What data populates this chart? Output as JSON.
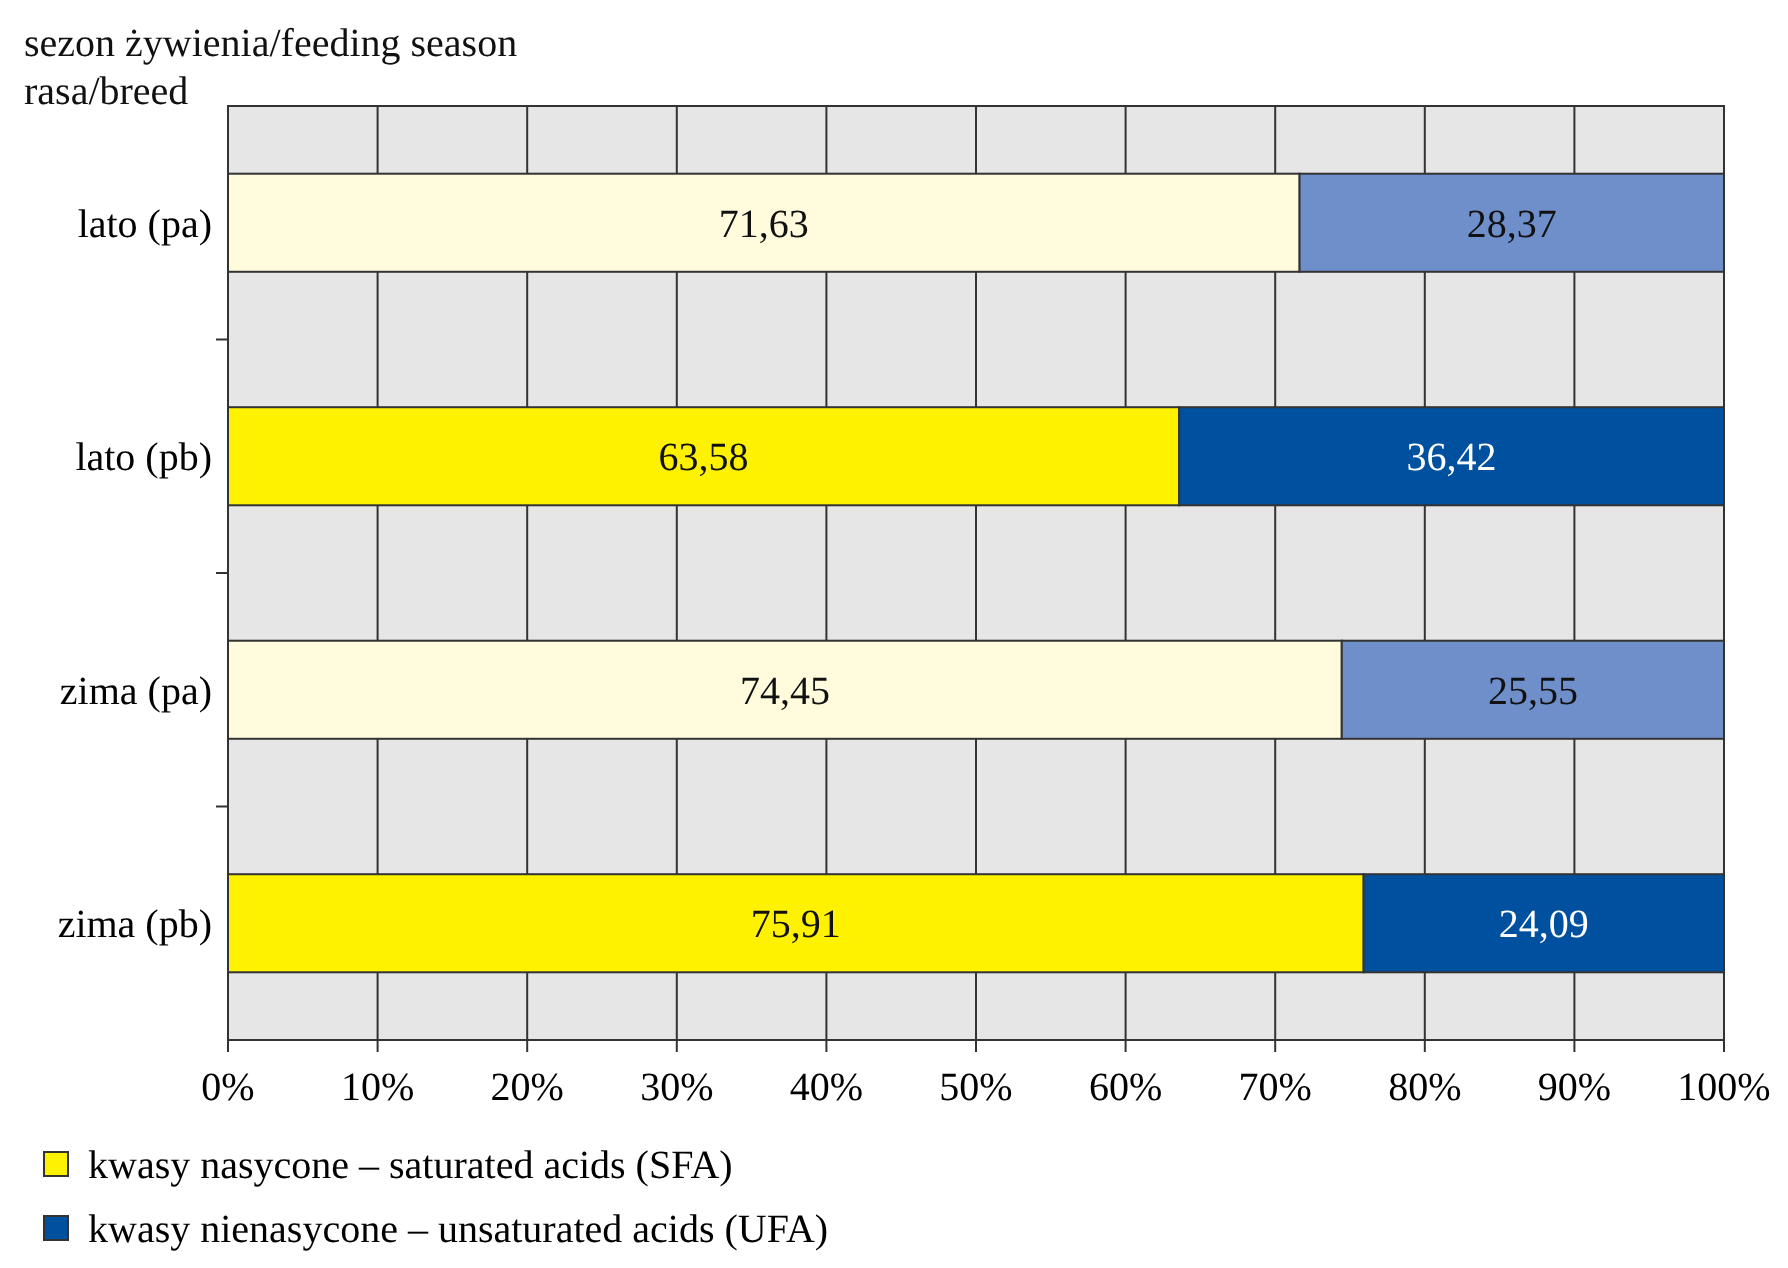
{
  "chart_data": {
    "type": "bar",
    "orientation": "horizontal",
    "stacked": true,
    "title": "sezon żywienia/feeding season",
    "subtitle": "rasa/breed",
    "categories": [
      "lato (pa)",
      "lato (pb)",
      "zima (pa)",
      "zima (pb)"
    ],
    "series": [
      {
        "name": "kwasy nasycone – saturated acids (SFA)",
        "color": "#fff200",
        "colors": [
          "#fffbdc",
          "#fff200",
          "#fffbdc",
          "#fff200"
        ],
        "values": [
          71.63,
          63.58,
          74.45,
          75.91
        ],
        "value_labels": [
          "71,63",
          "63,58",
          "74,45",
          "75,91"
        ]
      },
      {
        "name": "kwasy nienasycone – unsaturated acids (UFA)",
        "color": "#0050a0",
        "colors": [
          "#6f8fcb",
          "#0050a0",
          "#6f8fcb",
          "#0050a0"
        ],
        "values": [
          28.37,
          36.42,
          25.55,
          24.09
        ],
        "value_labels": [
          "28,37",
          "36,42",
          "25,55",
          "24,09"
        ]
      }
    ],
    "xlim": [
      0,
      100
    ],
    "xticks": [
      {
        "value": 0,
        "label": "0%"
      },
      {
        "value": 10,
        "label": "10%"
      },
      {
        "value": 20,
        "label": "20%"
      },
      {
        "value": 30,
        "label": "30%"
      },
      {
        "value": 40,
        "label": "40%"
      },
      {
        "value": 50,
        "label": "50%"
      },
      {
        "value": 60,
        "label": "60%"
      },
      {
        "value": 70,
        "label": "70%"
      },
      {
        "value": 80,
        "label": "80%"
      },
      {
        "value": 90,
        "label": "90%"
      },
      {
        "value": 100,
        "label": "100%"
      }
    ],
    "grid": "x",
    "legend": "bottom"
  }
}
